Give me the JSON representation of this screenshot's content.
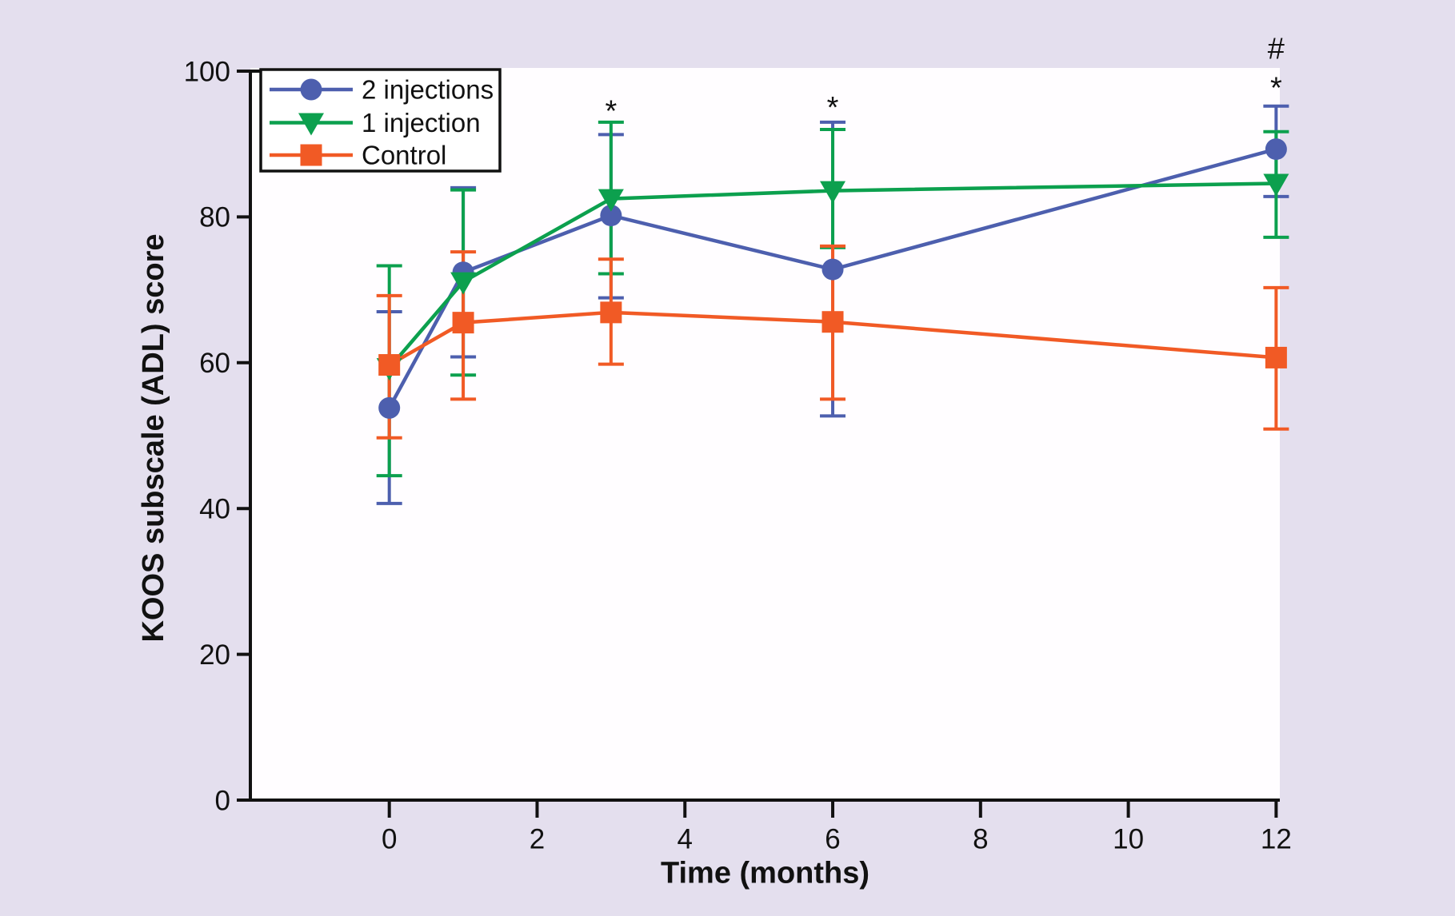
{
  "figure": {
    "background_color": "#e4dfee",
    "plot_background_color": "#fffdff",
    "axis_color": "#111111",
    "legend_border_color": "#111111",
    "legend_background_color": "#ffffff"
  },
  "chart_data": {
    "type": "line",
    "title": "",
    "xlabel": "Time (months)",
    "ylabel": "KOOS subscale (ADL) score",
    "x": [
      0,
      1,
      3,
      6,
      12
    ],
    "xticks": [
      0,
      2,
      4,
      6,
      8,
      10,
      12
    ],
    "yticks": [
      0,
      20,
      40,
      60,
      80,
      100
    ],
    "xlim": [
      -1.88,
      12.05
    ],
    "ylim": [
      0,
      100
    ],
    "grid": false,
    "error_bars": true,
    "legend_position": "top-left",
    "series": [
      {
        "name": "2 injections",
        "color": "#4d5fae",
        "marker": "circle",
        "values": [
          53.8,
          72.4,
          80.2,
          72.8,
          89.3
        ],
        "err_low": [
          40.7,
          60.8,
          68.9,
          52.7,
          82.8
        ],
        "err_high": [
          67.0,
          84.0,
          91.3,
          93.0,
          95.2
        ]
      },
      {
        "name": "1 injection",
        "color": "#0ca04e",
        "marker": "triangle-down",
        "values": [
          59.3,
          71.1,
          82.5,
          83.6,
          84.6
        ],
        "err_low": [
          44.5,
          58.3,
          72.2,
          75.8,
          77.2
        ],
        "err_high": [
          73.3,
          83.7,
          93.0,
          92.0,
          91.7
        ]
      },
      {
        "name": "Control",
        "color": "#f15a25",
        "marker": "square",
        "values": [
          59.7,
          65.5,
          66.9,
          65.6,
          60.7
        ],
        "err_low": [
          49.7,
          55.0,
          59.8,
          55.0,
          50.9
        ],
        "err_high": [
          69.2,
          75.2,
          74.2,
          76.0,
          70.3
        ]
      }
    ],
    "annotations": [
      {
        "text": "*",
        "x": 3,
        "y": 95.3
      },
      {
        "text": "*",
        "x": 6,
        "y": 95.8
      },
      {
        "text": "*",
        "x": 12,
        "y": 98.5
      },
      {
        "text": "#",
        "x": 12,
        "y": 103.2
      }
    ]
  }
}
